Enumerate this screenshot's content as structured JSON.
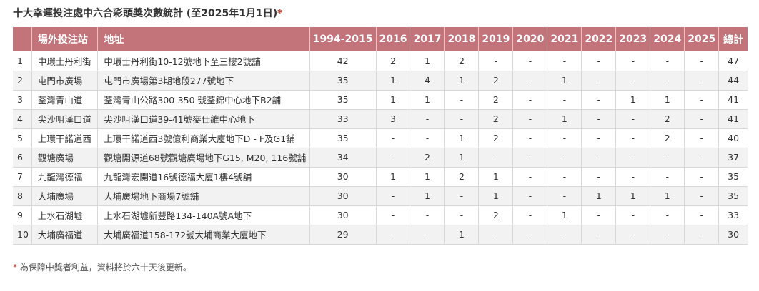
{
  "title": {
    "text": "十大幸運投注處中六合彩頭獎次數統計 (至2025年1月1日)",
    "star": "*"
  },
  "table": {
    "headers": [
      "",
      "場外投注站",
      "地址",
      "1994-2015",
      "2016",
      "2017",
      "2018",
      "2019",
      "2020",
      "2021",
      "2022",
      "2023",
      "2024",
      "2025",
      "總計"
    ],
    "rows": [
      [
        "1",
        "中環士丹利街",
        "中環士丹利街10-12號地下至三樓2號舖",
        "42",
        "2",
        "1",
        "2",
        "-",
        "-",
        "-",
        "-",
        "-",
        "-",
        "-",
        "47"
      ],
      [
        "2",
        "屯門市廣場",
        "屯門市廣場第3期地段277號地下",
        "35",
        "1",
        "4",
        "1",
        "2",
        "-",
        "1",
        "-",
        "-",
        "-",
        "-",
        "44"
      ],
      [
        "3",
        "荃灣青山道",
        "荃灣青山公路300-350 號荃錦中心地下B2舖",
        "35",
        "1",
        "1",
        "-",
        "2",
        "-",
        "-",
        "-",
        "1",
        "1",
        "-",
        "41"
      ],
      [
        "4",
        "尖沙咀漢口道",
        "尖沙咀漢口道39-41號麥仕維中心地下",
        "33",
        "3",
        "-",
        "-",
        "2",
        "-",
        "1",
        "-",
        "-",
        "2",
        "-",
        "41"
      ],
      [
        "5",
        "上環干諾道西",
        "上環干諾道西3號億利商業大廈地下D - F及G1舖",
        "35",
        "-",
        "-",
        "1",
        "2",
        "-",
        "-",
        "-",
        "-",
        "2",
        "-",
        "40"
      ],
      [
        "6",
        "觀塘廣場",
        "觀塘開源道68號觀塘廣場地下G15, M20, 116號舖",
        "34",
        "-",
        "2",
        "1",
        "-",
        "-",
        "-",
        "-",
        "-",
        "-",
        "-",
        "37"
      ],
      [
        "7",
        "九龍灣德福",
        "九龍灣宏開道16號德福大廈1樓4號舖",
        "30",
        "1",
        "1",
        "2",
        "1",
        "-",
        "-",
        "-",
        "-",
        "-",
        "-",
        "35"
      ],
      [
        "8",
        "大埔廣場",
        "大埔廣場地下商場7號舖",
        "30",
        "-",
        "1",
        "-",
        "1",
        "-",
        "-",
        "1",
        "1",
        "1",
        "-",
        "35"
      ],
      [
        "9",
        "上水石湖墟",
        "上水石湖墟新豐路134-140A號A地下",
        "30",
        "-",
        "-",
        "-",
        "2",
        "-",
        "1",
        "-",
        "-",
        "-",
        "-",
        "33"
      ],
      [
        "10",
        "大埔廣福道",
        "大埔廣福道158-172號大埔商業大廈地下",
        "29",
        "-",
        "-",
        "1",
        "-",
        "-",
        "-",
        "-",
        "-",
        "-",
        "-",
        "30"
      ]
    ]
  },
  "note": {
    "star": "*",
    "text": " 為保障中獎者利益，資料將於六十天後更新。"
  }
}
